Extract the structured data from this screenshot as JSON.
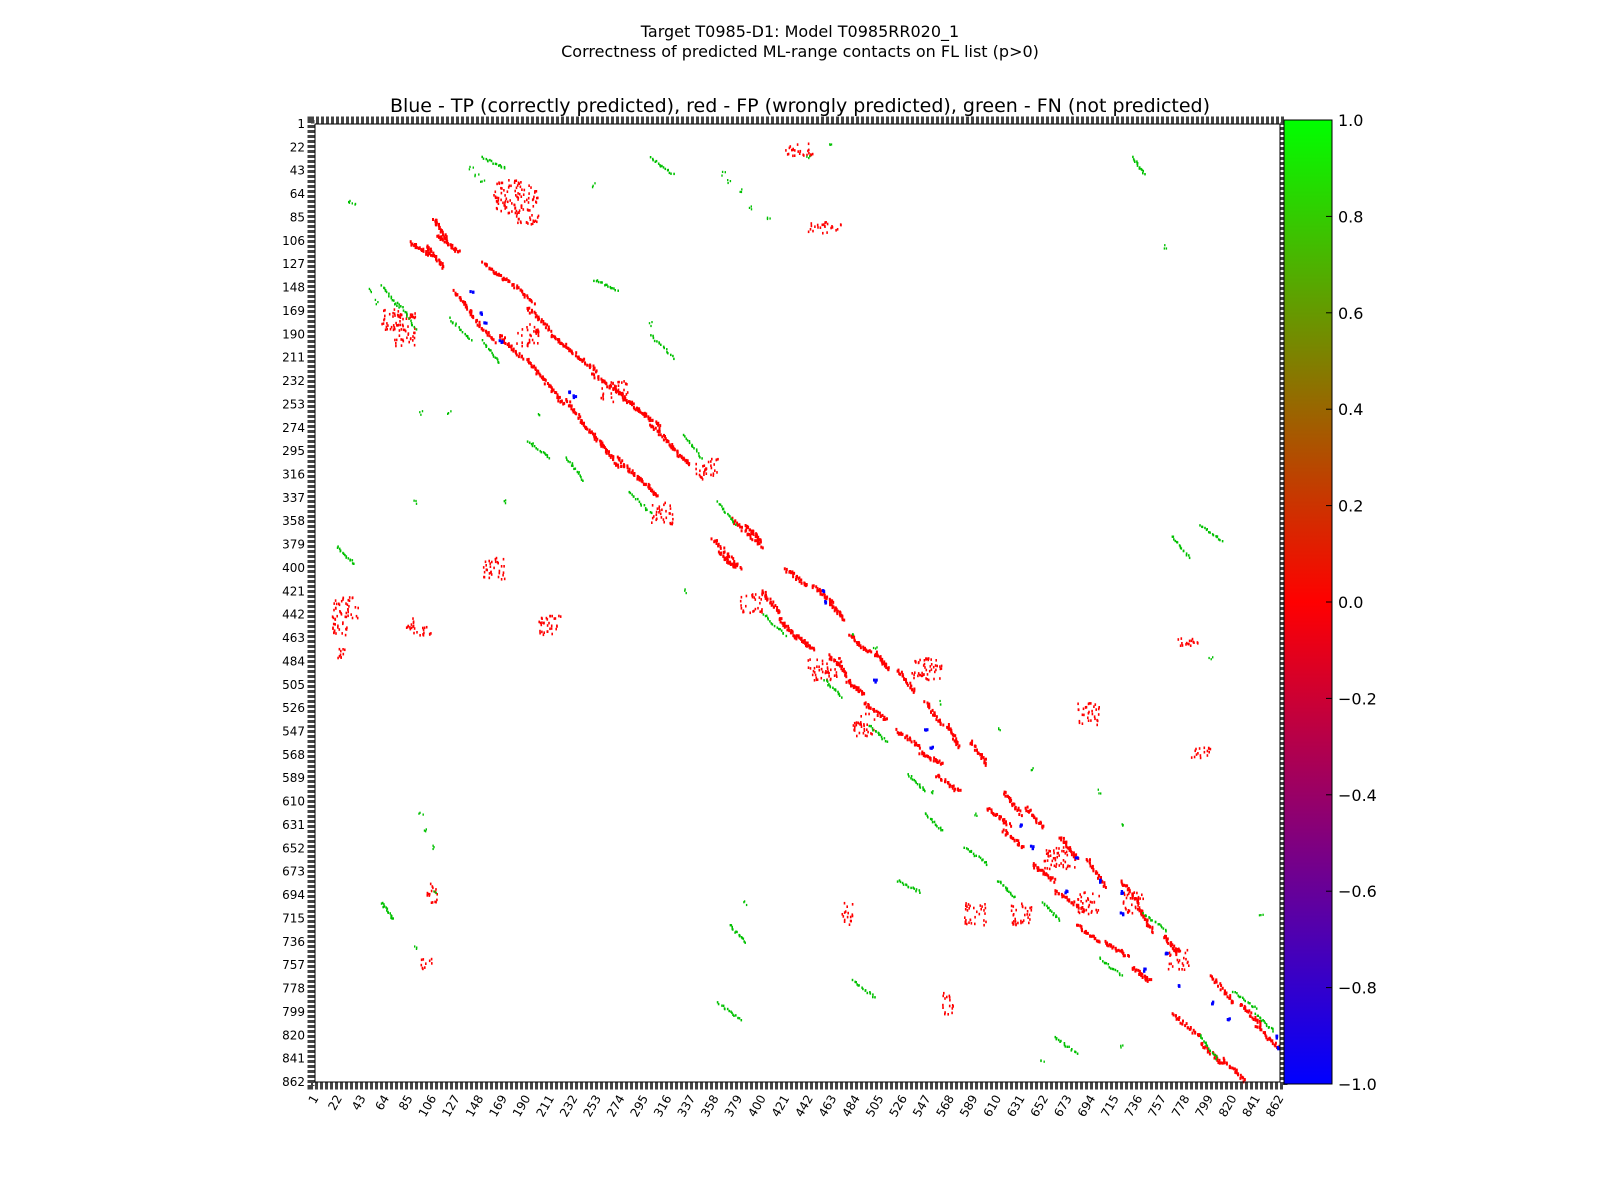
{
  "chart_data": {
    "type": "heatmap",
    "title_line1": "Target T0985-D1: Model T0985RR020_1",
    "title_line2": "Correctness of predicted ML-range contacts on FL list (p>0)",
    "subtitle": "Blue - TP (correctly predicted), red - FP (wrongly predicted), green - FN (not predicted)",
    "axis_range": [
      1,
      862
    ],
    "ticks": [
      1,
      22,
      43,
      64,
      85,
      106,
      127,
      148,
      169,
      190,
      211,
      232,
      253,
      274,
      295,
      316,
      337,
      358,
      379,
      400,
      421,
      442,
      463,
      484,
      505,
      526,
      547,
      568,
      589,
      610,
      631,
      652,
      673,
      694,
      715,
      736,
      757,
      778,
      799,
      820,
      841,
      862
    ],
    "colorbar": {
      "range": [
        -1.0,
        1.0
      ],
      "ticks": [
        "1.0",
        "0.8",
        "0.6",
        "0.4",
        "0.2",
        "0.0",
        "−0.2",
        "−0.4",
        "−0.6",
        "−0.8",
        "−1.0"
      ],
      "colors": {
        "low": "#0000ff",
        "mid": "#ff0000",
        "high": "#00ff00"
      }
    },
    "legend": {
      "tp_color": "#0000ff",
      "fp_color": "#ff0000",
      "fn_color": "#00c000"
    },
    "red_segments": [
      [
        85,
        103,
        106,
        118
      ],
      [
        100,
        115,
        110,
        128
      ],
      [
        125,
        140,
        150,
        170
      ],
      [
        140,
        160,
        172,
        195
      ],
      [
        165,
        185,
        190,
        210
      ],
      [
        190,
        205,
        212,
        230
      ],
      [
        205,
        222,
        230,
        252
      ],
      [
        225,
        240,
        248,
        270
      ],
      [
        240,
        258,
        270,
        290
      ],
      [
        255,
        272,
        288,
        308
      ],
      [
        270,
        290,
        300,
        320
      ],
      [
        290,
        305,
        318,
        334
      ],
      [
        355,
        380,
        372,
        400
      ],
      [
        360,
        375,
        385,
        398
      ],
      [
        400,
        415,
        420,
        440
      ],
      [
        415,
        430,
        445,
        462
      ],
      [
        430,
        445,
        460,
        472
      ],
      [
        460,
        475,
        478,
        495
      ],
      [
        475,
        490,
        500,
        512
      ],
      [
        490,
        510,
        520,
        535
      ],
      [
        520,
        540,
        545,
        560
      ],
      [
        540,
        560,
        565,
        575
      ],
      [
        555,
        575,
        585,
        600
      ],
      [
        600,
        620,
        615,
        630
      ],
      [
        615,
        632,
        635,
        650
      ],
      [
        640,
        660,
        665,
        680
      ],
      [
        660,
        685,
        690,
        705
      ],
      [
        680,
        700,
        720,
        735
      ],
      [
        705,
        725,
        735,
        748
      ],
      [
        730,
        745,
        758,
        770
      ],
      [
        765,
        790,
        800,
        820
      ],
      [
        790,
        810,
        825,
        845
      ],
      [
        810,
        830,
        840,
        860
      ]
    ],
    "red_blocks": [
      [
        17,
        40,
        425,
        445
      ],
      [
        88,
        104,
        450,
        460
      ],
      [
        420,
        445,
        17,
        30
      ],
      [
        440,
        470,
        88,
        98
      ],
      [
        16,
        30,
        440,
        460
      ],
      [
        82,
        90,
        440,
        460
      ],
      [
        160,
        185,
        50,
        80
      ],
      [
        180,
        200,
        55,
        90
      ],
      [
        70,
        90,
        170,
        200
      ],
      [
        60,
        80,
        165,
        185
      ],
      [
        180,
        200,
        180,
        200
      ],
      [
        255,
        280,
        230,
        250
      ],
      [
        300,
        320,
        340,
        360
      ],
      [
        340,
        360,
        300,
        320
      ],
      [
        380,
        400,
        420,
        440
      ],
      [
        440,
        470,
        480,
        500
      ],
      [
        480,
        500,
        530,
        550
      ],
      [
        530,
        560,
        480,
        500
      ],
      [
        580,
        600,
        700,
        720
      ],
      [
        620,
        640,
        700,
        720
      ],
      [
        650,
        680,
        650,
        670
      ],
      [
        680,
        700,
        690,
        710
      ],
      [
        720,
        740,
        690,
        710
      ],
      [
        760,
        780,
        740,
        760
      ],
      [
        470,
        480,
        700,
        720
      ],
      [
        560,
        570,
        780,
        800
      ],
      [
        780,
        800,
        560,
        570
      ],
      [
        680,
        700,
        520,
        540
      ],
      [
        770,
        790,
        460,
        470
      ],
      [
        100,
        110,
        680,
        700
      ],
      [
        95,
        105,
        750,
        760
      ],
      [
        20,
        30,
        470,
        480
      ],
      [
        150,
        170,
        390,
        410
      ],
      [
        200,
        220,
        440,
        460
      ]
    ],
    "green_segments": [
      [
        60,
        75,
        145,
        165
      ],
      [
        75,
        90,
        160,
        185
      ],
      [
        120,
        140,
        175,
        195
      ],
      [
        150,
        165,
        195,
        215
      ],
      [
        190,
        210,
        285,
        300
      ],
      [
        225,
        240,
        300,
        320
      ],
      [
        280,
        300,
        330,
        350
      ],
      [
        300,
        320,
        190,
        210
      ],
      [
        330,
        345,
        280,
        300
      ],
      [
        360,
        375,
        340,
        360
      ],
      [
        400,
        420,
        440,
        460
      ],
      [
        455,
        470,
        500,
        515
      ],
      [
        495,
        510,
        540,
        555
      ],
      [
        530,
        545,
        585,
        600
      ],
      [
        545,
        560,
        620,
        635
      ],
      [
        580,
        600,
        650,
        665
      ],
      [
        610,
        625,
        680,
        695
      ],
      [
        650,
        665,
        700,
        715
      ],
      [
        700,
        720,
        750,
        765
      ],
      [
        740,
        760,
        710,
        725
      ],
      [
        790,
        810,
        360,
        375
      ],
      [
        765,
        780,
        370,
        390
      ],
      [
        730,
        740,
        30,
        45
      ],
      [
        360,
        380,
        790,
        805
      ],
      [
        60,
        70,
        700,
        715
      ],
      [
        370,
        385,
        720,
        735
      ],
      [
        20,
        35,
        380,
        395
      ],
      [
        300,
        320,
        30,
        45
      ],
      [
        150,
        170,
        30,
        40
      ],
      [
        250,
        270,
        140,
        150
      ],
      [
        480,
        500,
        770,
        785
      ],
      [
        520,
        540,
        680,
        690
      ],
      [
        660,
        680,
        820,
        835
      ],
      [
        820,
        840,
        780,
        795
      ],
      [
        790,
        805,
        820,
        840
      ],
      [
        840,
        855,
        800,
        815
      ]
    ],
    "green_points": [
      [
        31,
        70
      ],
      [
        35,
        72
      ],
      [
        50,
        150
      ],
      [
        55,
        160
      ],
      [
        140,
        40
      ],
      [
        145,
        45
      ],
      [
        150,
        50
      ],
      [
        365,
        45
      ],
      [
        370,
        52
      ],
      [
        380,
        60
      ],
      [
        390,
        75
      ],
      [
        405,
        85
      ],
      [
        440,
        30
      ],
      [
        460,
        20
      ],
      [
        95,
        620
      ],
      [
        100,
        635
      ],
      [
        90,
        740
      ],
      [
        108,
        690
      ],
      [
        105,
        650
      ],
      [
        650,
        843
      ],
      [
        760,
        110
      ],
      [
        800,
        480
      ],
      [
        845,
        710
      ],
      [
        385,
        700
      ],
      [
        550,
        600
      ],
      [
        590,
        620
      ],
      [
        720,
        830
      ],
      [
        300,
        180
      ],
      [
        250,
        55
      ],
      [
        95,
        260
      ],
      [
        120,
        260
      ],
      [
        200,
        260
      ],
      [
        170,
        340
      ],
      [
        90,
        340
      ],
      [
        330,
        420
      ],
      [
        480,
        460
      ],
      [
        500,
        470
      ],
      [
        560,
        520
      ],
      [
        610,
        545
      ],
      [
        640,
        580
      ],
      [
        700,
        600
      ],
      [
        720,
        630
      ]
    ],
    "blue_points": [
      [
        148,
        170
      ],
      [
        152,
        178
      ],
      [
        140,
        150
      ],
      [
        166,
        195
      ],
      [
        228,
        240
      ],
      [
        232,
        245
      ],
      [
        454,
        420
      ],
      [
        456,
        430
      ],
      [
        500,
        500
      ],
      [
        545,
        545
      ],
      [
        550,
        560
      ],
      [
        630,
        630
      ],
      [
        640,
        650
      ],
      [
        680,
        660
      ],
      [
        700,
        680
      ],
      [
        720,
        690
      ],
      [
        740,
        760
      ],
      [
        760,
        745
      ],
      [
        770,
        775
      ],
      [
        800,
        790
      ],
      [
        815,
        805
      ],
      [
        858,
        820
      ],
      [
        860,
        830
      ],
      [
        720,
        710
      ],
      [
        670,
        690
      ]
    ]
  }
}
